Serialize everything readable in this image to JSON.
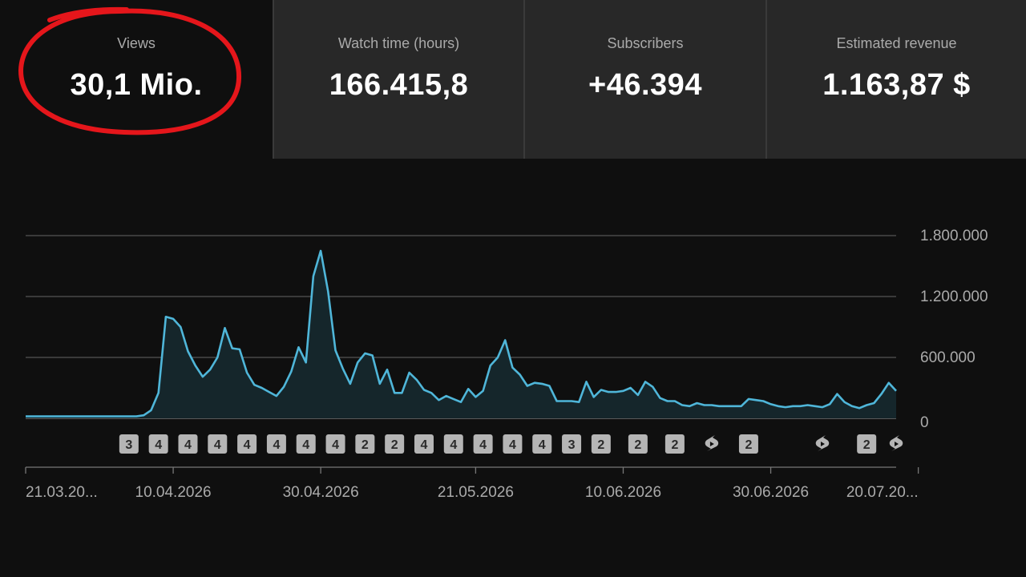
{
  "stats": [
    {
      "label": "Views",
      "value": "30,1 Mio."
    },
    {
      "label": "Watch time (hours)",
      "value": "166.415,8"
    },
    {
      "label": "Subscribers",
      "value": "+46.394"
    },
    {
      "label": "Estimated revenue",
      "value": "1.163,87 $"
    }
  ],
  "colors": {
    "line": "#4fb6d9",
    "area": "#15262b",
    "highlight_circle": "#e5161b",
    "badge": "#b5b5b5",
    "grid": "#555555",
    "background": "#0f0f0f",
    "card_unselected": "#282828"
  },
  "chart_data": {
    "type": "area",
    "ylim": [
      0,
      1800000
    ],
    "y_ticks": [
      {
        "value": 0,
        "label": "0"
      },
      {
        "value": 600000,
        "label": "600.000"
      },
      {
        "value": 1200000,
        "label": "1.200.000"
      },
      {
        "value": 1800000,
        "label": "1.800.000"
      }
    ],
    "x_ticks": [
      "21.03.20...",
      "10.04.2026",
      "30.04.2026",
      "21.05.2026",
      "10.06.2026",
      "30.06.2026",
      "20.07.20..."
    ],
    "x_tick_index": [
      0,
      20,
      40,
      61,
      81,
      101,
      121
    ],
    "grid": true,
    "series": [
      {
        "values": [
          20000,
          20000,
          20000,
          20000,
          20000,
          20000,
          20000,
          20000,
          20000,
          20000,
          20000,
          20000,
          20000,
          20000,
          20000,
          20000,
          30000,
          80000,
          250000,
          1000000,
          980000,
          900000,
          660000,
          520000,
          410000,
          480000,
          600000,
          890000,
          690000,
          680000,
          450000,
          330000,
          300000,
          260000,
          220000,
          310000,
          460000,
          700000,
          550000,
          1400000,
          1650000,
          1250000,
          670000,
          490000,
          340000,
          550000,
          640000,
          620000,
          340000,
          480000,
          250000,
          250000,
          450000,
          380000,
          280000,
          250000,
          180000,
          220000,
          190000,
          160000,
          290000,
          210000,
          270000,
          520000,
          600000,
          770000,
          500000,
          430000,
          320000,
          350000,
          340000,
          320000,
          170000,
          170000,
          170000,
          160000,
          360000,
          210000,
          280000,
          260000,
          260000,
          270000,
          300000,
          230000,
          360000,
          310000,
          200000,
          170000,
          170000,
          130000,
          120000,
          150000,
          130000,
          130000,
          120000,
          120000,
          120000,
          120000,
          190000,
          180000,
          170000,
          140000,
          120000,
          110000,
          120000,
          120000,
          130000,
          120000,
          110000,
          140000,
          240000,
          160000,
          120000,
          100000,
          130000,
          150000,
          240000,
          350000,
          270000
        ]
      }
    ],
    "annotations": [
      {
        "text": "3",
        "index": 14
      },
      {
        "text": "4",
        "index": 18
      },
      {
        "text": "4",
        "index": 22
      },
      {
        "text": "4",
        "index": 26
      },
      {
        "text": "4",
        "index": 30
      },
      {
        "text": "4",
        "index": 34
      },
      {
        "text": "4",
        "index": 38
      },
      {
        "text": "4",
        "index": 42
      },
      {
        "text": "2",
        "index": 46
      },
      {
        "text": "2",
        "index": 50
      },
      {
        "text": "4",
        "index": 54
      },
      {
        "text": "4",
        "index": 58
      },
      {
        "text": "4",
        "index": 62
      },
      {
        "text": "4",
        "index": 66
      },
      {
        "text": "4",
        "index": 70
      },
      {
        "text": "3",
        "index": 74
      },
      {
        "text": "2",
        "index": 78
      },
      {
        "text": "2",
        "index": 83
      },
      {
        "text": "2",
        "index": 88
      },
      {
        "icon": "shorts-icon",
        "index": 93
      },
      {
        "text": "2",
        "index": 98
      },
      {
        "icon": "shorts-icon",
        "index": 108
      },
      {
        "text": "2",
        "index": 114
      },
      {
        "icon": "shorts-icon",
        "index": 118
      }
    ]
  }
}
